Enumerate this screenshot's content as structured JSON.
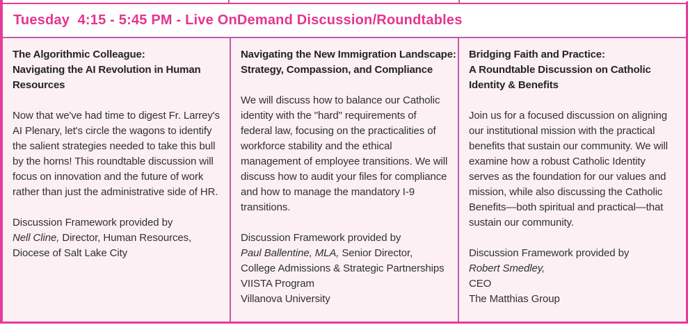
{
  "header": {
    "title": "Tuesday  4:15 - 5:45 PM - Live OnDemand Discussion/Roundtables"
  },
  "colors": {
    "accent": "#e83a98",
    "header_text": "#e5348f",
    "divider": "#c05ca4",
    "cell_bg": "#fdf0f5",
    "body_text": "#303030"
  },
  "sessions": [
    {
      "title_lines": [
        "The Algorithmic Colleague:",
        "Navigating the AI Revolution in Human",
        "Resources"
      ],
      "description": "Now that we've had time to digest Fr. Larrey's AI Plenary, let's circle the wagons to identify the salient strategies needed to take this bull by the horns! This roundtable discussion will focus on innovation and the future of work rather than just the administrative side of HR.",
      "credit_intro": "Discussion Framework provided by",
      "credit_lines": [
        {
          "italic": "Nell Cline,",
          "regular": " Director, Human Resources,"
        },
        {
          "regular": "Diocese of Salt Lake City"
        }
      ]
    },
    {
      "title_lines": [
        "Navigating the New Immigration Landscape:",
        "Strategy, Compassion, and Compliance"
      ],
      "description": "We will discuss how to balance our Catholic identity with the \"hard\" requirements of federal law, focusing on the practicalities of workforce stability and the ethical management of employee transitions.  We will discuss how to audit your files for compliance and how to manage the mandatory I-9 transitions.",
      "credit_intro": "Discussion Framework provided by",
      "credit_lines": [
        {
          "italic": "Paul Ballentine, MLA,",
          "regular": " Senior Director,"
        },
        {
          "regular": "College Admissions & Strategic Partnerships"
        },
        {
          "regular": "VIISTA Program"
        },
        {
          "regular": "Villanova University"
        }
      ]
    },
    {
      "title_lines": [
        "Bridging Faith and Practice:",
        "A Roundtable Discussion on Catholic",
        "Identity & Benefits"
      ],
      "description": "Join us for a focused discussion on aligning our institutional mission with the practical benefits that sustain our community. We will examine how a robust Catholic Identity serves as the foundation for our values and mission, while also discussing the Catholic Benefits—both spiritual and practical—that sustain our community.",
      "credit_intro": "Discussion Framework provided by",
      "credit_lines": [
        {
          "italic": "Robert Smedley,"
        },
        {
          "regular": "CEO"
        },
        {
          "regular": "The Matthias Group"
        }
      ]
    }
  ]
}
